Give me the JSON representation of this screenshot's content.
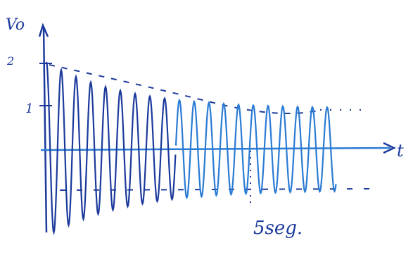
{
  "axis_labels": {
    "y": "Vo",
    "x": "t"
  },
  "y_marks": [
    "2",
    "1"
  ],
  "annotation": "5seg."
}
